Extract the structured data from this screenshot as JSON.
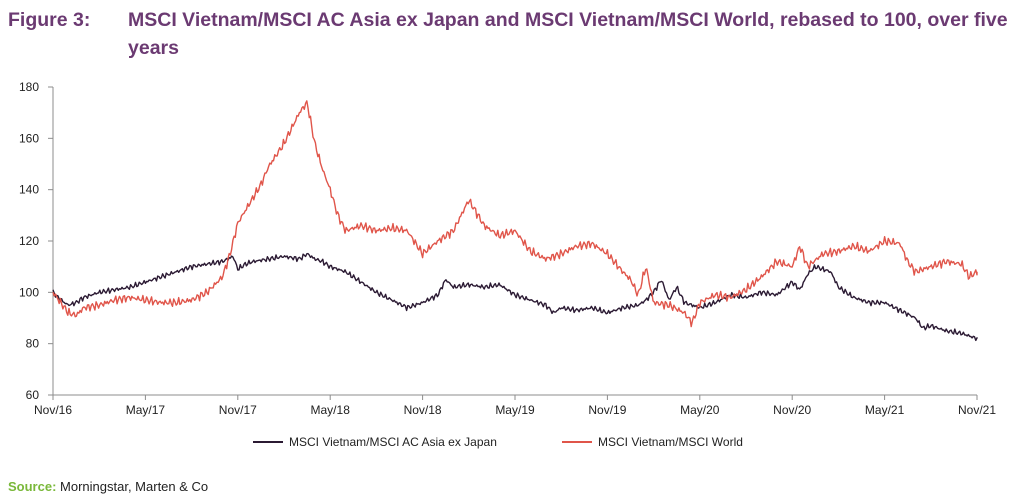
{
  "figure": {
    "label": "Figure 3:",
    "title": "MSCI Vietnam/MSCI AC Asia ex Japan and MSCI Vietnam/MSCI World, rebased to 100, over five years"
  },
  "source": {
    "label": "Source:",
    "text": "Morningstar, Marten & Co"
  },
  "colors": {
    "title": "#6b3a72",
    "series_asia": "#2b1a33",
    "series_world": "#e0554a",
    "source_label": "#7ab83a"
  },
  "chart_data": {
    "type": "line",
    "title": "MSCI Vietnam/MSCI AC Asia ex Japan and MSCI Vietnam/MSCI World, rebased to 100, over five years",
    "xlabel": "",
    "ylabel": "",
    "ylim": [
      60,
      180
    ],
    "yticks": [
      60,
      80,
      100,
      120,
      140,
      160,
      180
    ],
    "xlim": [
      0,
      60
    ],
    "xticks": [
      {
        "label": "Nov/16",
        "t": 0
      },
      {
        "label": "May/17",
        "t": 6
      },
      {
        "label": "Nov/17",
        "t": 12
      },
      {
        "label": "May/18",
        "t": 18
      },
      {
        "label": "Nov/18",
        "t": 24
      },
      {
        "label": "May/19",
        "t": 30
      },
      {
        "label": "Nov/19",
        "t": 36
      },
      {
        "label": "May/20",
        "t": 42
      },
      {
        "label": "Nov/20",
        "t": 48
      },
      {
        "label": "May/21",
        "t": 54
      },
      {
        "label": "Nov/21",
        "t": 60
      }
    ],
    "grid": false,
    "legend_position": "bottom",
    "series": [
      {
        "name": "MSCI Vietnam/MSCI AC Asia ex Japan",
        "color": "#2b1a33",
        "t": [
          0,
          0.5,
          1,
          1.5,
          2,
          3,
          4,
          5,
          6,
          7,
          8,
          9,
          10,
          11,
          11.7,
          12,
          12.5,
          13,
          14,
          15,
          16,
          16.5,
          17,
          17.5,
          18,
          19,
          20,
          21,
          22,
          23,
          24,
          25,
          25.5,
          26,
          27,
          28,
          29,
          29.5,
          30,
          31,
          32,
          32.5,
          33,
          34,
          35,
          36,
          37,
          38,
          38.5,
          39,
          39.5,
          40,
          40.5,
          41,
          42,
          43,
          44,
          45,
          46,
          47,
          48,
          48.5,
          49,
          49.5,
          50,
          50.5,
          51,
          52,
          53,
          54,
          55,
          56,
          56.5,
          57,
          58,
          59,
          60
        ],
        "values": [
          100,
          97,
          95,
          96,
          98,
          100,
          101,
          102,
          104,
          106,
          108,
          110,
          111,
          112,
          114,
          109,
          111,
          112,
          113,
          114,
          113,
          115,
          113,
          112,
          110,
          108,
          104,
          100,
          97,
          94,
          96,
          99,
          105,
          102,
          103,
          102,
          103,
          101,
          99,
          97,
          95,
          92,
          94,
          93,
          94,
          92,
          94,
          95,
          97,
          100,
          105,
          97,
          102,
          96,
          94,
          96,
          99,
          98,
          100,
          99,
          104,
          101,
          107,
          110,
          109,
          108,
          102,
          98,
          96,
          96,
          93,
          90,
          86,
          87,
          85,
          84,
          82
        ]
      },
      {
        "name": "MSCI Vietnam/MSCI World",
        "color": "#e0554a",
        "t": [
          0,
          0.5,
          1,
          1.5,
          2,
          3,
          4,
          5,
          6,
          7,
          8,
          9,
          10,
          11,
          11.5,
          12,
          12.5,
          13,
          13.5,
          14,
          15,
          15.5,
          16,
          16.5,
          17,
          17.5,
          18,
          18.5,
          19,
          20,
          21,
          22,
          23,
          24,
          25,
          26,
          27,
          27.5,
          28,
          29,
          30,
          31,
          32,
          33,
          34,
          35,
          36,
          37,
          37.5,
          38,
          38.5,
          39,
          40,
          41,
          41.5,
          42,
          43,
          44,
          45,
          46,
          47,
          48,
          48.5,
          49,
          50,
          51,
          52,
          53,
          54,
          55,
          55.5,
          56,
          57,
          58,
          59,
          59.5,
          60
        ],
        "values": [
          100,
          96,
          92,
          91,
          94,
          95,
          97,
          98,
          97,
          96,
          96,
          97,
          100,
          106,
          115,
          127,
          132,
          137,
          142,
          149,
          158,
          164,
          170,
          174,
          158,
          148,
          140,
          130,
          124,
          126,
          124,
          125,
          124,
          115,
          120,
          124,
          136,
          131,
          126,
          122,
          124,
          116,
          113,
          115,
          118,
          119,
          115,
          108,
          105,
          99,
          110,
          96,
          95,
          92,
          88,
          96,
          99,
          98,
          101,
          106,
          112,
          110,
          118,
          110,
          115,
          116,
          118,
          116,
          120,
          119,
          112,
          108,
          110,
          112,
          111,
          106,
          108
        ]
      }
    ]
  }
}
